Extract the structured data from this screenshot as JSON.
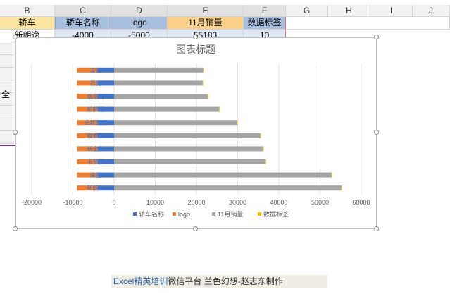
{
  "sheet": {
    "columns": [
      "B",
      "C",
      "D",
      "E",
      "F",
      "G",
      "H",
      "I",
      "J"
    ],
    "header_row": [
      "轿车",
      "轿车名称",
      "logo",
      "11月销量",
      "数据标签"
    ],
    "first_row": [
      "新朗逸",
      "-4000",
      "-5000",
      "55183",
      "10"
    ],
    "left_fragment": "全"
  },
  "footer": {
    "part1": "Excel精英培训",
    "part2": "微信平台 兰色幻想-赵志东制作"
  },
  "chart_data": {
    "type": "bar",
    "orientation": "horizontal",
    "stacked": true,
    "title": "图表标题",
    "categories": [
      "新朗逸",
      "速腾",
      "卡罗拉",
      "新宝来",
      "福睿斯",
      "全新英朗",
      "帕萨特",
      "桑塔纳",
      "迈腾",
      "凌渡"
    ],
    "series": [
      {
        "name": "轿车名称",
        "color": "#4472c4",
        "values": [
          -4000,
          -4000,
          -4000,
          -4000,
          -4000,
          -4000,
          -4000,
          -4000,
          -4000,
          -4000
        ]
      },
      {
        "name": "logo",
        "color": "#ed7d31",
        "values": [
          -5000,
          -5000,
          -5000,
          -5000,
          -5000,
          -5000,
          -5000,
          -5000,
          -5000,
          -5000
        ]
      },
      {
        "name": "11月销量",
        "color": "#a5a5a5",
        "values": [
          55183,
          52800,
          36800,
          36200,
          35500,
          29800,
          25500,
          22800,
          21500,
          21600
        ]
      },
      {
        "name": "数据标签",
        "color": "#ffc000",
        "values": [
          10,
          10,
          10,
          10,
          10,
          10,
          10,
          10,
          10,
          10
        ]
      }
    ],
    "xlim": [
      -20000,
      60000
    ],
    "xticks": [
      "-20000",
      "-10000",
      "0",
      "10000",
      "20000",
      "30000",
      "40000",
      "50000",
      "60000"
    ],
    "grid": true,
    "legend": "bottom"
  }
}
